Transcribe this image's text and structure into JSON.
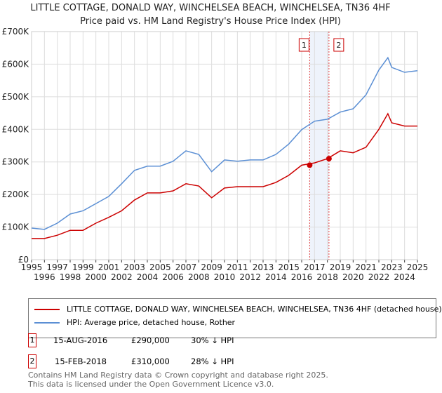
{
  "chart_data": {
    "type": "line",
    "title": "LITTLE COTTAGE, DONALD WAY, WINCHELSEA BEACH, WINCHELSEA, TN36 4HF",
    "subtitle": "Price paid vs. HM Land Registry's House Price Index (HPI)",
    "xlim": [
      1995,
      2025
    ],
    "ylim": [
      0,
      700000
    ],
    "yticks": [
      {
        "v": 0,
        "l": "£0"
      },
      {
        "v": 100000,
        "l": "£100K"
      },
      {
        "v": 200000,
        "l": "£200K"
      },
      {
        "v": 300000,
        "l": "£300K"
      },
      {
        "v": 400000,
        "l": "£400K"
      },
      {
        "v": 500000,
        "l": "£500K"
      },
      {
        "v": 600000,
        "l": "£600K"
      },
      {
        "v": 700000,
        "l": "£700K"
      }
    ],
    "xticks": [
      "1995",
      "1996",
      "1997",
      "1998",
      "1999",
      "2000",
      "2001",
      "2002",
      "2003",
      "2004",
      "2005",
      "2006",
      "2007",
      "2008",
      "2009",
      "2010",
      "2011",
      "2012",
      "2013",
      "2014",
      "2015",
      "2016",
      "2017",
      "2018",
      "2019",
      "2020",
      "2021",
      "2022",
      "2023",
      "2024",
      "2025"
    ],
    "x": [
      1995,
      1996,
      1997,
      1998,
      1999,
      2000,
      2001,
      2002,
      2003,
      2004,
      2005,
      2006,
      2007,
      2008,
      2009,
      2010,
      2011,
      2012,
      2013,
      2014,
      2015,
      2016,
      2017,
      2018,
      2019,
      2020,
      2021,
      2022,
      2022.7,
      2023,
      2024,
      2025
    ],
    "series": [
      {
        "name": "LITTLE COTTAGE, DONALD WAY, WINCHELSEA BEACH, WINCHELSEA, TN36 4HF (detached house)",
        "color": "#cc0000",
        "values": [
          65000,
          65000,
          75000,
          90000,
          90000,
          112000,
          130000,
          150000,
          183000,
          205000,
          205000,
          211000,
          233000,
          226000,
          190000,
          220000,
          224000,
          224000,
          224000,
          237000,
          259000,
          290000,
          297000,
          310000,
          334000,
          328000,
          345000,
          400000,
          448000,
          420000,
          410000,
          410000
        ]
      },
      {
        "name": "HPI: Average price, detached house, Rother",
        "color": "#5b8fd4",
        "values": [
          97000,
          93000,
          112000,
          140000,
          150000,
          172000,
          194000,
          233000,
          274000,
          287000,
          287000,
          302000,
          334000,
          323000,
          270000,
          306000,
          302000,
          306000,
          306000,
          323000,
          355000,
          399000,
          425000,
          431000,
          453000,
          463000,
          506000,
          582000,
          620000,
          590000,
          575000,
          580000
        ]
      }
    ],
    "sales": [
      {
        "n": "1",
        "x": 2016.62,
        "date": "15-AUG-2016",
        "price": 290000,
        "price_label": "£290,000",
        "hpi": "30% ↓ HPI"
      },
      {
        "n": "2",
        "x": 2018.12,
        "date": "15-FEB-2018",
        "price": 310000,
        "price_label": "£310,000",
        "hpi": "28% ↓ HPI"
      }
    ],
    "legend_position": "bottom",
    "grid": true
  },
  "footer": {
    "line1": "Contains HM Land Registry data © Crown copyright and database right 2025.",
    "line2": "This data is licensed under the Open Government Licence v3.0."
  }
}
